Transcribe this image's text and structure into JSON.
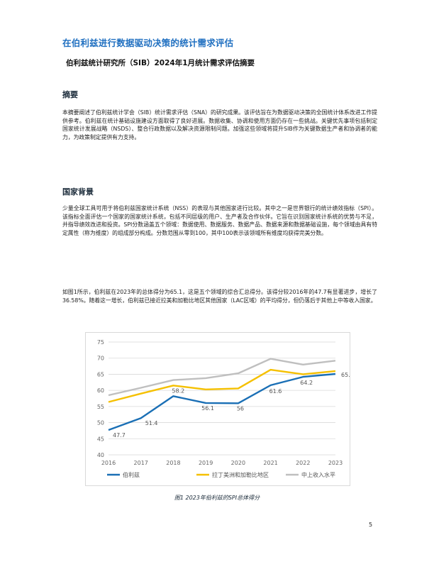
{
  "document": {
    "title": "在伯利兹进行数据驱动决策的统计需求评估",
    "subtitle": "伯利兹统计研究所（SIB）2024年1月统计需求评估摘要",
    "sections": [
      {
        "heading": "摘要",
        "paragraphs": [
          "本摘要阐述了伯利兹统计学会（SIB）统计需求评估（SNA）的研究成果。该评估旨在为数据驱动决策的全国统计体系改进工作提供参考。伯利兹在统计基础设施建设方面取得了良好进展。数据收集、协调和使用方面仍存在一些挑战。关键优先事项包括制定国家统计发展战略（NSDS）、整合行政数据以及解决资源限制问题。加强这些领域将提升SIB作为关键数据生产者和协调者的能力，为政策制定提供有力支持。"
        ]
      },
      {
        "heading": "国家背景",
        "paragraphs": [
          "少量全球工具可用于将伯利兹国家统计系统（NSS）的表现与其他国家进行比较。其中之一是世界银行的统计绩效指标（SPI）。该指标全面评估一个国家的国家统计系统，包括不同层级的用户、生产者及合作伙伴。它旨在识别国家统计系统的优势与不足，并指导绩效改进和投资。SPI分数涵盖五个领域：数据使用、数据服务、数据产品、数据来源和数据基础设施，每个领域由具有特定属性（称为维度）的组成部分构成。分数范围从零到100，其中100表示该领域所有维度均获得完美分数。",
          "如图1所示，伯利兹在2023年的总体得分为65.1，这是五个领域的综合汇总得分。该得分较2016年的47.7有显著进步，增长了36.58%。随着这一增长，伯利兹已接近拉美和加勒比地区其他国家（LAC区域）的平均得分，但仍落后于其他上中等收入国家。"
        ]
      }
    ],
    "figure_caption": "图1 2023年伯利兹的SPI总体得分",
    "page_number": "5"
  },
  "chart_data": {
    "type": "line",
    "x": [
      2016,
      2017,
      2018,
      2019,
      2020,
      2021,
      2022,
      2023
    ],
    "ylim": [
      40,
      75
    ],
    "yticks": [
      40,
      45,
      50,
      55,
      60,
      65,
      70,
      75
    ],
    "grid": true,
    "legend_position": "bottom",
    "series": [
      {
        "name": "伯利兹",
        "color": "#1a6fb5",
        "values": [
          47.7,
          51.4,
          58.2,
          56.1,
          56.0,
          61.6,
          64.2,
          65.1
        ],
        "labels": [
          "47.7",
          "51.4",
          "58.2",
          "56.1",
          "56",
          "61.6",
          "64.2",
          "65.1"
        ]
      },
      {
        "name": "拉丁美洲和加勒比地区",
        "color": "#f5c000",
        "values": [
          56.4,
          59.0,
          61.5,
          60.3,
          60.6,
          66.4,
          65.0,
          66.0
        ]
      },
      {
        "name": "中上收入水平",
        "color": "#bfbfbf",
        "values": [
          58.5,
          60.8,
          63.2,
          63.8,
          65.3,
          69.8,
          68.0,
          69.2
        ]
      }
    ]
  }
}
